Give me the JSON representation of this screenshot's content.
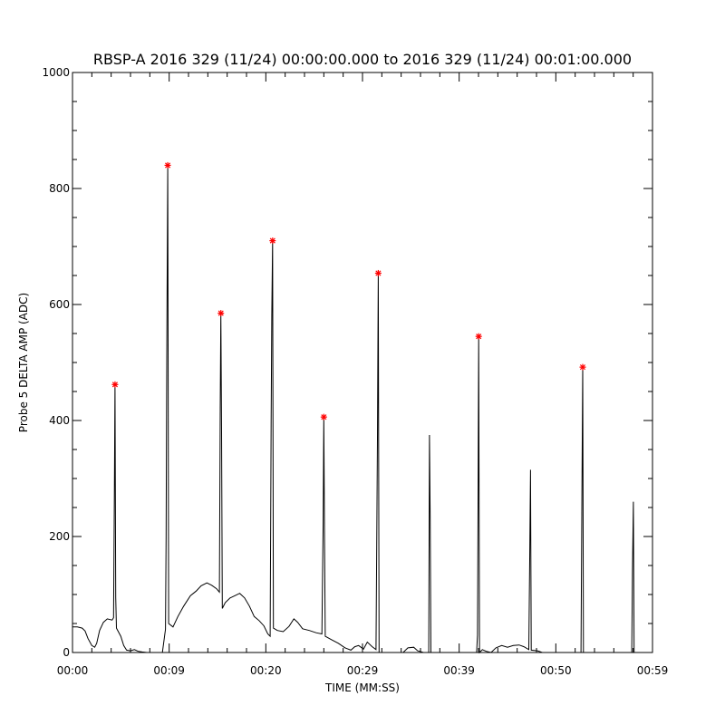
{
  "chart_data": {
    "type": "line",
    "title": "RBSP-A 2016 329 (11/24) 00:00:00.000 to 2016 329 (11/24) 00:01:00.000",
    "xlabel": "TIME (MM:SS)",
    "ylabel": "Probe 5 DELTA AMP (ADC)",
    "xlim": [
      0,
      60
    ],
    "ylim": [
      0,
      1000
    ],
    "x_ticks": [
      {
        "value": 0,
        "label": "00:00"
      },
      {
        "value": 10,
        "label": "00:09"
      },
      {
        "value": 20,
        "label": "00:20"
      },
      {
        "value": 30,
        "label": "00:29"
      },
      {
        "value": 40,
        "label": "00:39"
      },
      {
        "value": 50,
        "label": "00:50"
      },
      {
        "value": 60,
        "label": "00:59"
      }
    ],
    "y_ticks": [
      {
        "value": 0,
        "label": "0"
      },
      {
        "value": 200,
        "label": "200"
      },
      {
        "value": 400,
        "label": "400"
      },
      {
        "value": 600,
        "label": "600"
      },
      {
        "value": 800,
        "label": "800"
      },
      {
        "value": 1000,
        "label": "1000"
      }
    ],
    "grid": false,
    "colors": {
      "line": "#000000",
      "marker": "#ff0000",
      "axes": "#000000"
    },
    "series": [
      {
        "values": [
          [
            0.0,
            44
          ],
          [
            0.5,
            44
          ],
          [
            1.0,
            42
          ],
          [
            1.3,
            37
          ],
          [
            1.6,
            24
          ],
          [
            2.0,
            12
          ],
          [
            2.3,
            9
          ],
          [
            2.5,
            16
          ],
          [
            2.8,
            38
          ],
          [
            3.2,
            52
          ],
          [
            3.6,
            58
          ],
          [
            4.1,
            56
          ],
          [
            4.25,
            60
          ],
          [
            4.33,
            270
          ],
          [
            4.4,
            462
          ],
          [
            4.47,
            95
          ],
          [
            4.55,
            42
          ],
          [
            5.0,
            28
          ],
          [
            5.3,
            12
          ],
          [
            5.6,
            4
          ],
          [
            6.0,
            3
          ],
          [
            6.4,
            5
          ],
          [
            6.8,
            2
          ],
          [
            7.2,
            1
          ],
          [
            7.7,
            0
          ],
          [
            8.5,
            0
          ],
          [
            9.3,
            0
          ],
          [
            9.62,
            40
          ],
          [
            9.68,
            200
          ],
          [
            9.75,
            505
          ],
          [
            9.85,
            840
          ],
          [
            9.95,
            50
          ],
          [
            10.4,
            44
          ],
          [
            10.9,
            62
          ],
          [
            11.5,
            80
          ],
          [
            12.2,
            98
          ],
          [
            12.8,
            106
          ],
          [
            13.3,
            115
          ],
          [
            13.9,
            120
          ],
          [
            14.4,
            116
          ],
          [
            14.9,
            110
          ],
          [
            15.2,
            104
          ],
          [
            15.28,
            420
          ],
          [
            15.35,
            585
          ],
          [
            15.42,
            380
          ],
          [
            15.5,
            76
          ],
          [
            15.8,
            86
          ],
          [
            16.3,
            94
          ],
          [
            16.8,
            98
          ],
          [
            17.3,
            102
          ],
          [
            17.8,
            94
          ],
          [
            18.3,
            80
          ],
          [
            18.8,
            62
          ],
          [
            19.3,
            55
          ],
          [
            19.8,
            46
          ],
          [
            20.2,
            32
          ],
          [
            20.45,
            28
          ],
          [
            20.55,
            400
          ],
          [
            20.62,
            580
          ],
          [
            20.7,
            710
          ],
          [
            20.78,
            42
          ],
          [
            21.2,
            38
          ],
          [
            21.8,
            36
          ],
          [
            22.4,
            45
          ],
          [
            22.9,
            58
          ],
          [
            23.3,
            52
          ],
          [
            23.8,
            41
          ],
          [
            24.5,
            38
          ],
          [
            25.2,
            34
          ],
          [
            25.8,
            32
          ],
          [
            25.93,
            225
          ],
          [
            26.0,
            406
          ],
          [
            26.07,
            195
          ],
          [
            26.15,
            28
          ],
          [
            26.8,
            22
          ],
          [
            27.5,
            16
          ],
          [
            28.2,
            8
          ],
          [
            28.8,
            4
          ],
          [
            29.2,
            10
          ],
          [
            29.6,
            12
          ],
          [
            30.1,
            6
          ],
          [
            30.5,
            18
          ],
          [
            31.0,
            10
          ],
          [
            31.4,
            5
          ],
          [
            31.55,
            368
          ],
          [
            31.63,
            654
          ],
          [
            31.72,
            0
          ],
          [
            32.5,
            0
          ],
          [
            34.2,
            0
          ],
          [
            34.7,
            8
          ],
          [
            35.3,
            9
          ],
          [
            35.7,
            3
          ],
          [
            36.3,
            0
          ],
          [
            36.85,
            0
          ],
          [
            36.93,
            375
          ],
          [
            37.0,
            230
          ],
          [
            37.08,
            0
          ],
          [
            38.5,
            0
          ],
          [
            41.8,
            0
          ],
          [
            41.9,
            30
          ],
          [
            41.96,
            290
          ],
          [
            42.02,
            545
          ],
          [
            42.1,
            0
          ],
          [
            42.4,
            5
          ],
          [
            42.8,
            2
          ],
          [
            43.3,
            0
          ],
          [
            43.8,
            8
          ],
          [
            44.4,
            12
          ],
          [
            45.0,
            9
          ],
          [
            45.6,
            12
          ],
          [
            46.2,
            13
          ],
          [
            46.7,
            10
          ],
          [
            47.2,
            5
          ],
          [
            47.3,
            160
          ],
          [
            47.38,
            315
          ],
          [
            47.46,
            4
          ],
          [
            48.1,
            3
          ],
          [
            48.6,
            0
          ],
          [
            50.0,
            0
          ],
          [
            52.6,
            0
          ],
          [
            52.7,
            265
          ],
          [
            52.78,
            492
          ],
          [
            52.86,
            0
          ],
          [
            54.5,
            0
          ],
          [
            56.8,
            0
          ],
          [
            57.85,
            0
          ],
          [
            57.93,
            140
          ],
          [
            58.02,
            260
          ],
          [
            58.1,
            0
          ],
          [
            58.4,
            0
          ]
        ]
      },
      {
        "type": "scatter",
        "marker": "*",
        "values": [
          [
            4.4,
            462
          ],
          [
            9.85,
            840
          ],
          [
            15.35,
            585
          ],
          [
            20.7,
            710
          ],
          [
            26.0,
            406
          ],
          [
            31.63,
            654
          ],
          [
            42.02,
            545
          ],
          [
            52.78,
            492
          ]
        ]
      }
    ]
  }
}
